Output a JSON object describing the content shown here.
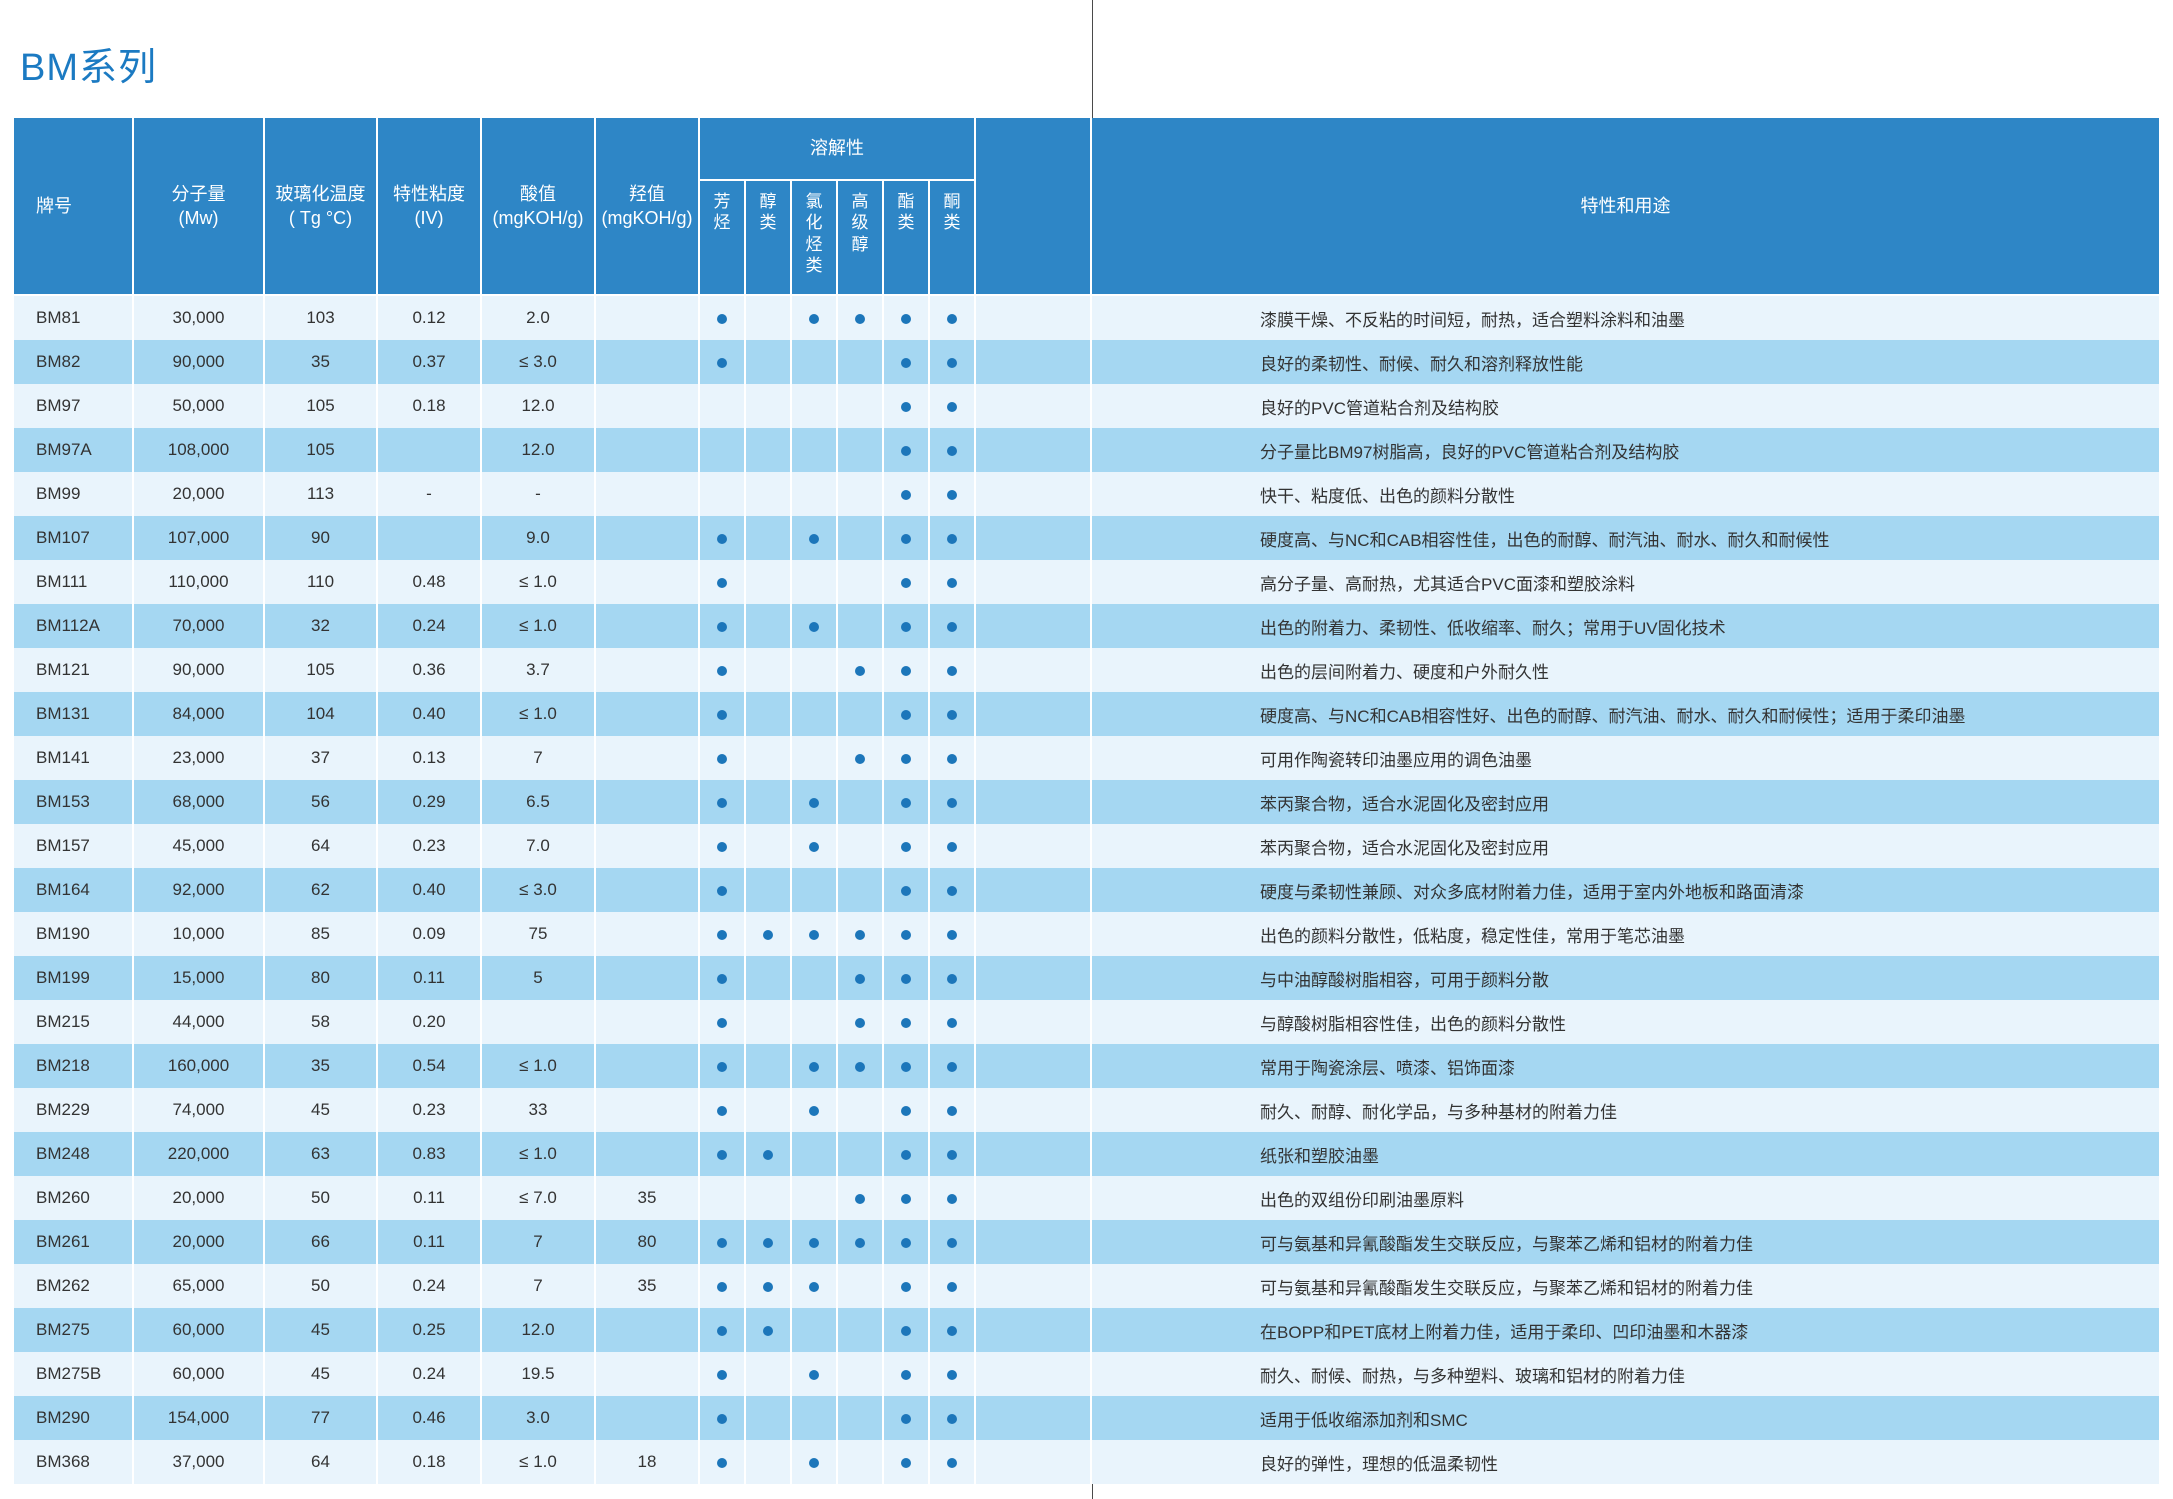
{
  "page": {
    "title": "BM系列"
  },
  "colors": {
    "header_bg": "#2e86c6",
    "row_light": "#e9f4fc",
    "row_dark": "#a5d7f2",
    "dot": "#1c76ba",
    "title": "#1b7ac2"
  },
  "table": {
    "headers": {
      "grade": "牌号",
      "mw": "分子量\n(Mw)",
      "tg": "玻璃化温度\n( Tg °C)",
      "iv": "特性粘度\n(IV)",
      "acid": "酸值\n(mgKOH/g)",
      "oh": "羟值\n(mgKOH/g)",
      "solubility_group": "溶解性",
      "solubility_columns": [
        "芳烃",
        "醇类",
        "氯化烃类",
        "高级醇",
        "酯类",
        "酮类"
      ],
      "features": "特性和用途"
    },
    "rows": [
      {
        "grade": "BM81",
        "mw": "30,000",
        "tg": "103",
        "iv": "0.12",
        "acid": "2.0",
        "oh": "",
        "sol": [
          1,
          0,
          1,
          1,
          1,
          1
        ],
        "desc": "漆膜干燥、不反粘的时间短，耐热，适合塑料涂料和油墨"
      },
      {
        "grade": "BM82",
        "mw": "90,000",
        "tg": "35",
        "iv": "0.37",
        "acid": "≤ 3.0",
        "oh": "",
        "sol": [
          1,
          0,
          0,
          0,
          1,
          1
        ],
        "desc": "良好的柔韧性、耐候、耐久和溶剂释放性能"
      },
      {
        "grade": "BM97",
        "mw": "50,000",
        "tg": "105",
        "iv": "0.18",
        "acid": "12.0",
        "oh": "",
        "sol": [
          0,
          0,
          0,
          0,
          1,
          1
        ],
        "desc": "良好的PVC管道粘合剂及结构胶"
      },
      {
        "grade": "BM97A",
        "mw": "108,000",
        "tg": "105",
        "iv": "",
        "acid": "12.0",
        "oh": "",
        "sol": [
          0,
          0,
          0,
          0,
          1,
          1
        ],
        "desc": "分子量比BM97树脂高，良好的PVC管道粘合剂及结构胶"
      },
      {
        "grade": "BM99",
        "mw": "20,000",
        "tg": "113",
        "iv": "-",
        "acid": "-",
        "oh": "",
        "sol": [
          0,
          0,
          0,
          0,
          1,
          1
        ],
        "desc": "快干、粘度低、出色的颜料分散性"
      },
      {
        "grade": "BM107",
        "mw": "107,000",
        "tg": "90",
        "iv": "",
        "acid": "9.0",
        "oh": "",
        "sol": [
          1,
          0,
          1,
          0,
          1,
          1
        ],
        "desc": "硬度高、与NC和CAB相容性佳，出色的耐醇、耐汽油、耐水、耐久和耐候性"
      },
      {
        "grade": "BM111",
        "mw": "110,000",
        "tg": "110",
        "iv": "0.48",
        "acid": "≤ 1.0",
        "oh": "",
        "sol": [
          1,
          0,
          0,
          0,
          1,
          1
        ],
        "desc": "高分子量、高耐热，尤其适合PVC面漆和塑胶涂料"
      },
      {
        "grade": "BM112A",
        "mw": "70,000",
        "tg": "32",
        "iv": "0.24",
        "acid": "≤ 1.0",
        "oh": "",
        "sol": [
          1,
          0,
          1,
          0,
          1,
          1
        ],
        "desc": "出色的附着力、柔韧性、低收缩率、耐久；常用于UV固化技术"
      },
      {
        "grade": "BM121",
        "mw": "90,000",
        "tg": "105",
        "iv": "0.36",
        "acid": "3.7",
        "oh": "",
        "sol": [
          1,
          0,
          0,
          1,
          1,
          1
        ],
        "desc": "出色的层间附着力、硬度和户外耐久性"
      },
      {
        "grade": "BM131",
        "mw": "84,000",
        "tg": "104",
        "iv": "0.40",
        "acid": "≤ 1.0",
        "oh": "",
        "sol": [
          1,
          0,
          0,
          0,
          1,
          1
        ],
        "desc": "硬度高、与NC和CAB相容性好、出色的耐醇、耐汽油、耐水、耐久和耐候性；适用于柔印油墨"
      },
      {
        "grade": "BM141",
        "mw": "23,000",
        "tg": "37",
        "iv": "0.13",
        "acid": "7",
        "oh": "",
        "sol": [
          1,
          0,
          0,
          1,
          1,
          1
        ],
        "desc": "可用作陶瓷转印油墨应用的调色油墨"
      },
      {
        "grade": "BM153",
        "mw": "68,000",
        "tg": "56",
        "iv": "0.29",
        "acid": "6.5",
        "oh": "",
        "sol": [
          1,
          0,
          1,
          0,
          1,
          1
        ],
        "desc": "苯丙聚合物，适合水泥固化及密封应用"
      },
      {
        "grade": "BM157",
        "mw": "45,000",
        "tg": "64",
        "iv": "0.23",
        "acid": "7.0",
        "oh": "",
        "sol": [
          1,
          0,
          1,
          0,
          1,
          1
        ],
        "desc": "苯丙聚合物，适合水泥固化及密封应用"
      },
      {
        "grade": "BM164",
        "mw": "92,000",
        "tg": "62",
        "iv": "0.40",
        "acid": "≤ 3.0",
        "oh": "",
        "sol": [
          1,
          0,
          0,
          0,
          1,
          1
        ],
        "desc": "硬度与柔韧性兼顾、对众多底材附着力佳，适用于室内外地板和路面清漆"
      },
      {
        "grade": "BM190",
        "mw": "10,000",
        "tg": "85",
        "iv": "0.09",
        "acid": "75",
        "oh": "",
        "sol": [
          1,
          1,
          1,
          1,
          1,
          1
        ],
        "desc": "出色的颜料分散性，低粘度，稳定性佳，常用于笔芯油墨"
      },
      {
        "grade": "BM199",
        "mw": "15,000",
        "tg": "80",
        "iv": "0.11",
        "acid": "5",
        "oh": "",
        "sol": [
          1,
          0,
          0,
          1,
          1,
          1
        ],
        "desc": "与中油醇酸树脂相容，可用于颜料分散"
      },
      {
        "grade": "BM215",
        "mw": "44,000",
        "tg": "58",
        "iv": "0.20",
        "acid": "",
        "oh": "",
        "sol": [
          1,
          0,
          0,
          1,
          1,
          1
        ],
        "desc": "与醇酸树脂相容性佳，出色的颜料分散性"
      },
      {
        "grade": "BM218",
        "mw": "160,000",
        "tg": "35",
        "iv": "0.54",
        "acid": "≤ 1.0",
        "oh": "",
        "sol": [
          1,
          0,
          1,
          1,
          1,
          1
        ],
        "desc": "常用于陶瓷涂层、喷漆、铝饰面漆"
      },
      {
        "grade": "BM229",
        "mw": "74,000",
        "tg": "45",
        "iv": "0.23",
        "acid": "33",
        "oh": "",
        "sol": [
          1,
          0,
          1,
          0,
          1,
          1
        ],
        "desc": "耐久、耐醇、耐化学品，与多种基材的附着力佳"
      },
      {
        "grade": "BM248",
        "mw": "220,000",
        "tg": "63",
        "iv": "0.83",
        "acid": "≤ 1.0",
        "oh": "",
        "sol": [
          1,
          1,
          0,
          0,
          1,
          1
        ],
        "desc": "纸张和塑胶油墨"
      },
      {
        "grade": "BM260",
        "mw": "20,000",
        "tg": "50",
        "iv": "0.11",
        "acid": "≤ 7.0",
        "oh": "35",
        "sol": [
          0,
          0,
          0,
          1,
          1,
          1
        ],
        "desc": "出色的双组份印刷油墨原料"
      },
      {
        "grade": "BM261",
        "mw": "20,000",
        "tg": "66",
        "iv": "0.11",
        "acid": "7",
        "oh": "80",
        "sol": [
          1,
          1,
          1,
          1,
          1,
          1
        ],
        "desc": "可与氨基和异氰酸酯发生交联反应，与聚苯乙烯和铝材的附着力佳"
      },
      {
        "grade": "BM262",
        "mw": "65,000",
        "tg": "50",
        "iv": "0.24",
        "acid": "7",
        "oh": "35",
        "sol": [
          1,
          1,
          1,
          0,
          1,
          1
        ],
        "desc": "可与氨基和异氰酸酯发生交联反应，与聚苯乙烯和铝材的附着力佳"
      },
      {
        "grade": "BM275",
        "mw": "60,000",
        "tg": "45",
        "iv": "0.25",
        "acid": "12.0",
        "oh": "",
        "sol": [
          1,
          1,
          0,
          0,
          1,
          1
        ],
        "desc": "在BOPP和PET底材上附着力佳，适用于柔印、凹印油墨和木器漆"
      },
      {
        "grade": "BM275B",
        "mw": "60,000",
        "tg": "45",
        "iv": "0.24",
        "acid": "19.5",
        "oh": "",
        "sol": [
          1,
          0,
          1,
          0,
          1,
          1
        ],
        "desc": "耐久、耐候、耐热，与多种塑料、玻璃和铝材的附着力佳"
      },
      {
        "grade": "BM290",
        "mw": "154,000",
        "tg": "77",
        "iv": "0.46",
        "acid": "3.0",
        "oh": "",
        "sol": [
          1,
          0,
          0,
          0,
          1,
          1
        ],
        "desc": "适用于低收缩添加剂和SMC"
      },
      {
        "grade": "BM368",
        "mw": "37,000",
        "tg": "64",
        "iv": "0.18",
        "acid": "≤ 1.0",
        "oh": "18",
        "sol": [
          1,
          0,
          1,
          0,
          1,
          1
        ],
        "desc": "良好的弹性，理想的低温柔韧性"
      }
    ]
  }
}
